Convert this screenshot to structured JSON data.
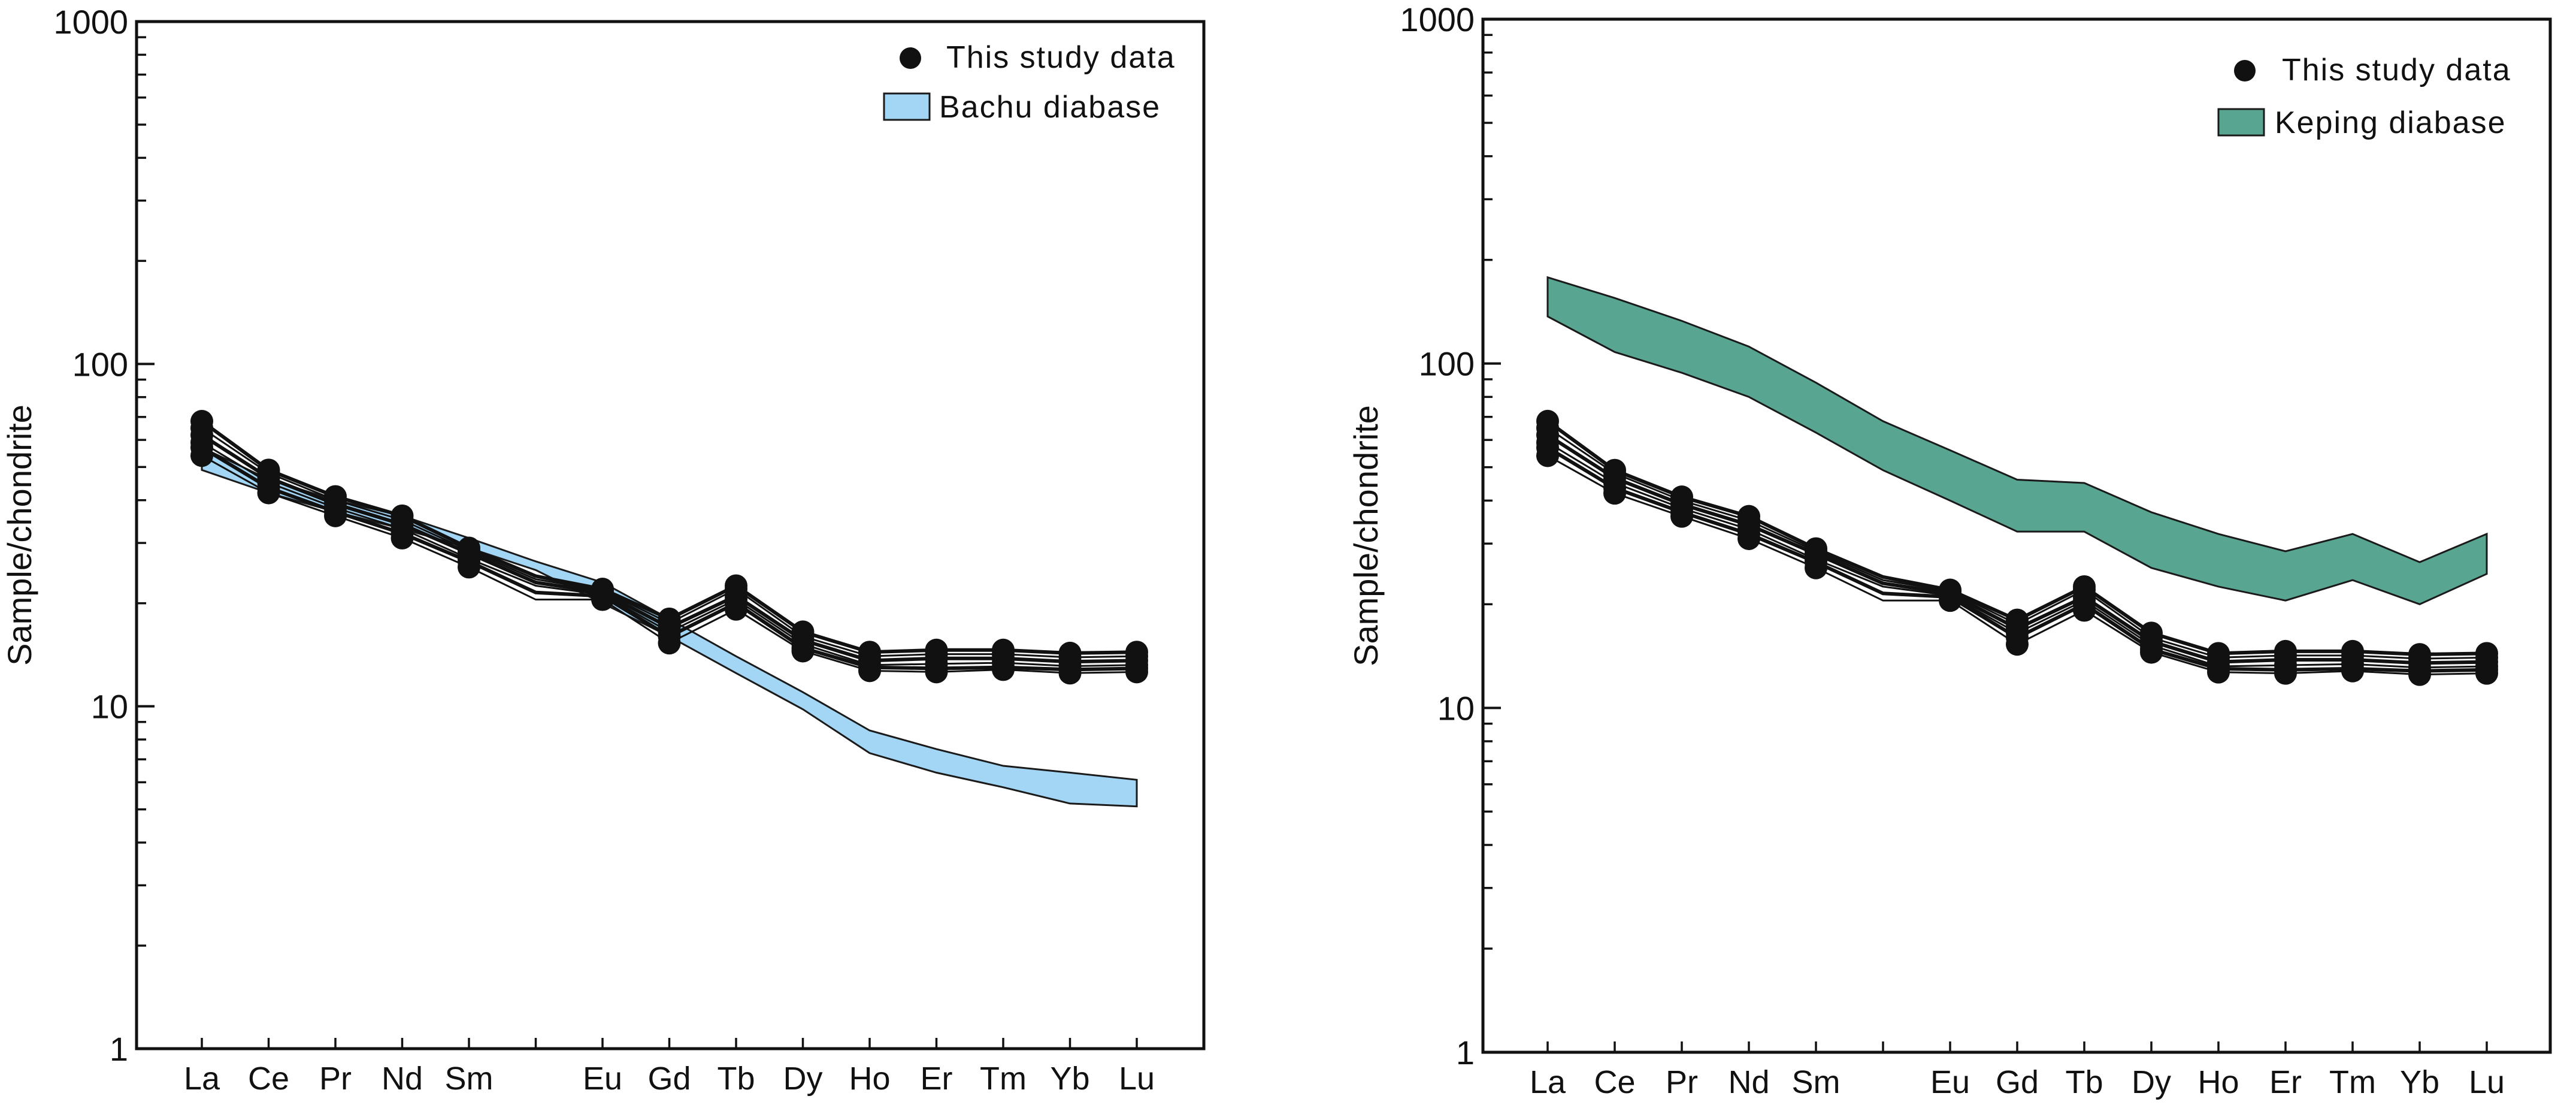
{
  "chart_data": [
    {
      "type": "line",
      "xlabel": "",
      "ylabel": "Sample/chondrite",
      "yscale": "log",
      "ylim": [
        1,
        1000
      ],
      "y_ticks": [
        "1",
        "10",
        "100",
        "1000"
      ],
      "categories": [
        "La",
        "Ce",
        "Pr",
        "Nd",
        "Sm",
        "",
        "Eu",
        "Gd",
        "Tb",
        "Dy",
        "Ho",
        "Er",
        "Tm",
        "Yb",
        "Lu"
      ],
      "legend": {
        "position": "top-right",
        "points_label": "This study data",
        "band_label": "Bachu diabase",
        "band_color": "#a3d5f5"
      },
      "band": {
        "name": "Bachu diabase",
        "upper": [
          57,
          46,
          40,
          36,
          31,
          26.5,
          23,
          18,
          14,
          11,
          8.5,
          7.5,
          6.7,
          6.4,
          6.1
        ],
        "lower": [
          49,
          42,
          37,
          33,
          29,
          25,
          20,
          16,
          12.5,
          9.8,
          7.3,
          6.4,
          5.8,
          5.2,
          5.1
        ]
      },
      "series": [
        {
          "name": "s1",
          "values": [
            68,
            49,
            41,
            36,
            29,
            24,
            22,
            18,
            22.5,
            16.5,
            14.4,
            14.6,
            14.6,
            14.3,
            14.4
          ]
        },
        {
          "name": "s2",
          "values": [
            65,
            48,
            40,
            35,
            28.5,
            23.5,
            21.8,
            17.5,
            22,
            16,
            14,
            14.2,
            14.2,
            13.9,
            14
          ]
        },
        {
          "name": "s3",
          "values": [
            62,
            46.5,
            39,
            34,
            28,
            23,
            21.5,
            17,
            21,
            15.6,
            13.6,
            13.8,
            13.8,
            13.5,
            13.6
          ]
        },
        {
          "name": "s4",
          "values": [
            59,
            45,
            38,
            33,
            27,
            22.5,
            21.2,
            16.5,
            20.5,
            15.2,
            13.2,
            13.3,
            13.4,
            13.1,
            13.2
          ]
        },
        {
          "name": "s5",
          "values": [
            57,
            43.5,
            37,
            32,
            26.5,
            21.5,
            21,
            16,
            20,
            14.8,
            13,
            12.9,
            13,
            12.8,
            12.9
          ]
        },
        {
          "name": "s6",
          "values": [
            54,
            42,
            36,
            31,
            25.5,
            20.5,
            20.5,
            15.3,
            19.2,
            14.5,
            12.7,
            12.6,
            12.8,
            12.5,
            12.6
          ]
        }
      ]
    },
    {
      "type": "line",
      "xlabel": "",
      "ylabel": "Sample/chondrite",
      "yscale": "log",
      "ylim": [
        1,
        1000
      ],
      "y_ticks": [
        "1",
        "10",
        "100",
        "1000"
      ],
      "categories": [
        "La",
        "Ce",
        "Pr",
        "Nd",
        "Sm",
        "",
        "Eu",
        "Gd",
        "Tb",
        "Dy",
        "Ho",
        "Er",
        "Tm",
        "Yb",
        "Lu"
      ],
      "legend": {
        "position": "top-right",
        "points_label": "This study data",
        "band_label": "Keping diabase",
        "band_color": "#58a592"
      },
      "band": {
        "name": "Keping diabase",
        "upper": [
          178,
          155,
          133,
          112,
          88,
          68,
          56,
          46,
          45,
          37,
          32,
          28.5,
          32,
          26.5,
          32
        ],
        "lower": [
          137,
          108,
          94,
          80,
          63,
          49,
          40,
          32.5,
          32.5,
          25.5,
          22.5,
          20.5,
          23.5,
          20,
          24.5
        ]
      },
      "series": [
        {
          "name": "s1",
          "values": [
            68,
            49,
            41,
            36,
            29,
            24,
            22,
            18,
            22.5,
            16.5,
            14.4,
            14.6,
            14.6,
            14.3,
            14.4
          ]
        },
        {
          "name": "s2",
          "values": [
            65,
            48,
            40,
            35,
            28.5,
            23.5,
            21.8,
            17.5,
            22,
            16,
            14,
            14.2,
            14.2,
            13.9,
            14
          ]
        },
        {
          "name": "s3",
          "values": [
            62,
            46.5,
            39,
            34,
            28,
            23,
            21.5,
            17,
            21,
            15.6,
            13.6,
            13.8,
            13.8,
            13.5,
            13.6
          ]
        },
        {
          "name": "s4",
          "values": [
            59,
            45,
            38,
            33,
            27,
            22.5,
            21.2,
            16.5,
            20.5,
            15.2,
            13.2,
            13.3,
            13.4,
            13.1,
            13.2
          ]
        },
        {
          "name": "s5",
          "values": [
            57,
            43.5,
            37,
            32,
            26.5,
            21.5,
            21,
            16,
            20,
            14.8,
            13,
            12.9,
            13,
            12.8,
            12.9
          ]
        },
        {
          "name": "s6",
          "values": [
            54,
            42,
            36,
            31,
            25.5,
            20.5,
            20.5,
            15.3,
            19.2,
            14.5,
            12.7,
            12.6,
            12.8,
            12.5,
            12.6
          ]
        }
      ]
    }
  ]
}
